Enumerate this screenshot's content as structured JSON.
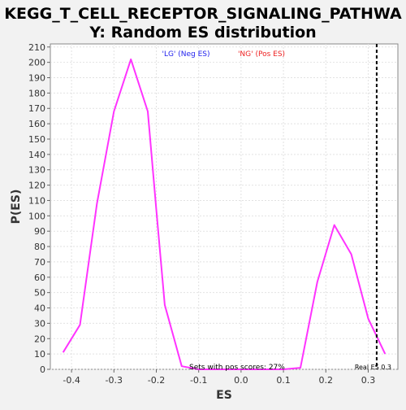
{
  "chart_data": {
    "type": "line",
    "title_lines": [
      "KEGG_T_CELL_RECEPTOR_SIGNALING_PATHWA",
      "Y: Random ES distribution"
    ],
    "xlabel": "ES",
    "ylabel": "P(ES)",
    "xlim": [
      -0.45,
      0.37
    ],
    "ylim": [
      0,
      212
    ],
    "xticks": [
      -0.4,
      -0.3,
      -0.2,
      -0.1,
      0.0,
      0.1,
      0.2,
      0.3
    ],
    "xtick_labels": [
      "-0.4",
      "-0.3",
      "-0.2",
      "-0.1",
      "0.0",
      "0.1",
      "0.2",
      "0.3"
    ],
    "yticks": [
      0,
      10,
      20,
      30,
      40,
      50,
      60,
      70,
      80,
      90,
      100,
      110,
      120,
      130,
      140,
      150,
      160,
      170,
      180,
      190,
      200,
      210
    ],
    "grid": true,
    "series": [
      {
        "color": "#ff33ff",
        "x": [
          -0.42,
          -0.38,
          -0.34,
          -0.3,
          -0.26,
          -0.22,
          -0.2,
          -0.18,
          -0.14,
          -0.1,
          -0.06,
          -0.02,
          0.02,
          0.06,
          0.1,
          0.14,
          0.18,
          0.22,
          0.26,
          0.3,
          0.34
        ],
        "y": [
          11,
          29,
          108,
          168,
          202,
          168,
          104,
          42,
          2,
          0,
          0,
          0,
          0,
          0,
          0,
          1,
          57,
          94,
          75,
          33,
          10
        ]
      }
    ],
    "legend": {
      "neg_label": "'LG' (Neg ES)",
      "neg_color": "#2222ee",
      "pos_label": "'NG' (Pos ES)",
      "pos_color": "#ee2222"
    },
    "real_es": 0.32,
    "real_es_label": "Real ES 0.3",
    "annotation": "Sets with pos scores: 27%"
  }
}
